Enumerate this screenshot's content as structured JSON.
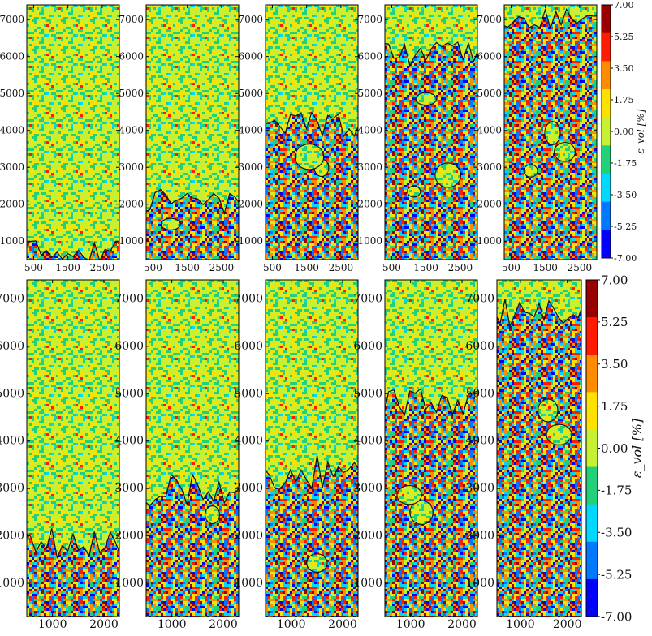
{
  "figure": {
    "rows": [
      {
        "yticks": [
          "1000",
          "2000",
          "3000",
          "4000",
          "5000",
          "6000",
          "7000"
        ],
        "yrange": [
          500,
          7400
        ],
        "xticks": [
          "500",
          "1500",
          "2500"
        ],
        "xrange": [
          300,
          3000
        ],
        "colorbar": {
          "label": "ε_vol [%]",
          "ticks": [
            "7.00",
            "5.25",
            "3.50",
            "1.75",
            "0.00",
            "-1.75",
            "-3.50",
            "-5.25",
            "-7.00"
          ]
        },
        "panels": [
          {
            "damage_front_y": 1100,
            "islands": []
          },
          {
            "damage_front_y": 2400,
            "islands": [
              1
            ]
          },
          {
            "damage_front_y": 4500,
            "islands": [
              1,
              2
            ]
          },
          {
            "damage_front_y": 6400,
            "islands": [
              1,
              2,
              3
            ]
          },
          {
            "damage_front_y": 7300,
            "islands": [
              1,
              2,
              3
            ]
          }
        ]
      },
      {
        "yticks": [
          "1000",
          "2000",
          "3000",
          "4000",
          "5000",
          "6000",
          "7000"
        ],
        "yrange": [
          300,
          7400
        ],
        "xticks": [
          "1000",
          "2000"
        ],
        "xrange": [
          500,
          2300
        ],
        "colorbar": {
          "label": "ε_vol [%]",
          "ticks": [
            "7.00",
            "5.25",
            "3.50",
            "1.75",
            "0.00",
            "-1.75",
            "-3.50",
            "-5.25",
            "-7.00"
          ]
        },
        "panels": [
          {
            "damage_front_y": 2200,
            "islands": []
          },
          {
            "damage_front_y": 3300,
            "islands": [
              1
            ]
          },
          {
            "damage_front_y": 3700,
            "islands": [
              1
            ]
          },
          {
            "damage_front_y": 5200,
            "islands": [
              1,
              2
            ]
          },
          {
            "damage_front_y": 7100,
            "islands": [
              1,
              2
            ]
          }
        ]
      }
    ],
    "colormap": [
      "#0000ff",
      "#0078ff",
      "#00d8ff",
      "#22d07a",
      "#c8f032",
      "#ffe100",
      "#ff8c00",
      "#ff1a00",
      "#990000"
    ]
  },
  "chart_data": {
    "type": "heatmap",
    "title": "",
    "xlabel": "",
    "ylabel": "",
    "colorbar_label": "ε_vol [%]",
    "colorbar_range": [
      -7.0,
      7.0
    ],
    "colorbar_levels": [
      -7.0,
      -5.25,
      -3.5,
      -1.75,
      0.0,
      1.75,
      3.5,
      5.25,
      7.0
    ],
    "row1": {
      "xlim": [
        300,
        3000
      ],
      "ylim": [
        500,
        7400
      ],
      "xticks": [
        500,
        1500,
        2500
      ],
      "yticks": [
        1000,
        2000,
        3000,
        4000,
        5000,
        6000,
        7000
      ],
      "damage_front_height": [
        1100,
        2400,
        4500,
        6400,
        7300
      ]
    },
    "row2": {
      "xlim": [
        500,
        2300
      ],
      "ylim": [
        300,
        7400
      ],
      "xticks": [
        1000,
        2000
      ],
      "yticks": [
        1000,
        2000,
        3000,
        4000,
        5000,
        6000,
        7000
      ],
      "damage_front_height": [
        2200,
        3300,
        3700,
        5200,
        7100
      ]
    }
  }
}
